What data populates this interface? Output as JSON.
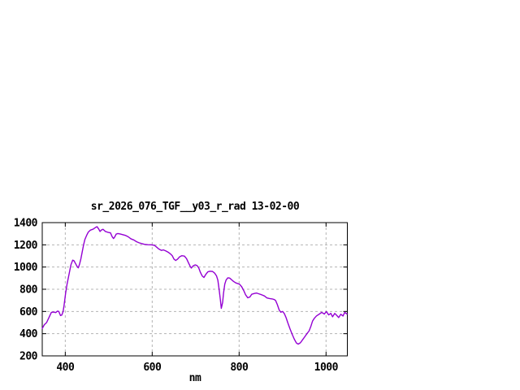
{
  "window": {
    "background": "#ffffff"
  },
  "colors": {
    "curve": "#9400d3",
    "grid": "#b4b4b4",
    "border": "#000000",
    "text": "#000000"
  },
  "chart_data": {
    "type": "line",
    "title": "sr_2026_076_TGF__y03_r_rad 13-02-00",
    "xlabel": "nm",
    "ylabel": "",
    "x_range": [
      347,
      1049
    ],
    "y_range": [
      200,
      1400
    ],
    "x_ticks": [
      400,
      600,
      800,
      1000
    ],
    "y_ticks": [
      200,
      400,
      600,
      800,
      1000,
      1200,
      1400
    ],
    "grid": true,
    "legend_position": "none",
    "series": [
      {
        "name": "sr_2026_076_TGF__y03_r_rad",
        "color": "#9400d3",
        "points": [
          [
            347,
            447
          ],
          [
            352,
            482
          ],
          [
            357,
            500
          ],
          [
            363,
            550
          ],
          [
            368,
            592
          ],
          [
            373,
            595
          ],
          [
            378,
            590
          ],
          [
            382,
            603
          ],
          [
            385,
            600
          ],
          [
            389,
            563
          ],
          [
            392,
            568
          ],
          [
            395,
            600
          ],
          [
            397,
            649
          ],
          [
            399,
            710
          ],
          [
            401,
            771
          ],
          [
            404,
            844
          ],
          [
            409,
            942
          ],
          [
            413,
            1020
          ],
          [
            417,
            1062
          ],
          [
            420,
            1057
          ],
          [
            424,
            1028
          ],
          [
            428,
            1000
          ],
          [
            430,
            993
          ],
          [
            433,
            1028
          ],
          [
            436,
            1076
          ],
          [
            439,
            1137
          ],
          [
            442,
            1198
          ],
          [
            445,
            1247
          ],
          [
            449,
            1284
          ],
          [
            453,
            1315
          ],
          [
            458,
            1333
          ],
          [
            464,
            1341
          ],
          [
            469,
            1355
          ],
          [
            473,
            1364
          ],
          [
            477,
            1342
          ],
          [
            480,
            1320
          ],
          [
            483,
            1333
          ],
          [
            487,
            1340
          ],
          [
            492,
            1321
          ],
          [
            498,
            1313
          ],
          [
            504,
            1308
          ],
          [
            508,
            1272
          ],
          [
            511,
            1257
          ],
          [
            514,
            1272
          ],
          [
            517,
            1296
          ],
          [
            521,
            1302
          ],
          [
            527,
            1297
          ],
          [
            533,
            1291
          ],
          [
            539,
            1284
          ],
          [
            545,
            1272
          ],
          [
            551,
            1254
          ],
          [
            558,
            1243
          ],
          [
            564,
            1228
          ],
          [
            570,
            1218
          ],
          [
            576,
            1211
          ],
          [
            582,
            1205
          ],
          [
            590,
            1201
          ],
          [
            598,
            1200
          ],
          [
            605,
            1196
          ],
          [
            610,
            1180
          ],
          [
            615,
            1163
          ],
          [
            621,
            1150
          ],
          [
            626,
            1154
          ],
          [
            631,
            1146
          ],
          [
            637,
            1133
          ],
          [
            642,
            1118
          ],
          [
            646,
            1103
          ],
          [
            650,
            1072
          ],
          [
            654,
            1059
          ],
          [
            658,
            1070
          ],
          [
            663,
            1092
          ],
          [
            668,
            1102
          ],
          [
            674,
            1099
          ],
          [
            679,
            1076
          ],
          [
            684,
            1034
          ],
          [
            688,
            1002
          ],
          [
            690,
            991
          ],
          [
            694,
            1010
          ],
          [
            699,
            1019
          ],
          [
            703,
            1014
          ],
          [
            707,
            993
          ],
          [
            711,
            951
          ],
          [
            715,
            920
          ],
          [
            719,
            906
          ],
          [
            723,
            932
          ],
          [
            728,
            957
          ],
          [
            733,
            962
          ],
          [
            739,
            960
          ],
          [
            744,
            944
          ],
          [
            748,
            920
          ],
          [
            751,
            883
          ],
          [
            754,
            798
          ],
          [
            757,
            700
          ],
          [
            759,
            628
          ],
          [
            762,
            680
          ],
          [
            764,
            761
          ],
          [
            767,
            846
          ],
          [
            770,
            883
          ],
          [
            774,
            903
          ],
          [
            778,
            901
          ],
          [
            782,
            888
          ],
          [
            787,
            871
          ],
          [
            792,
            858
          ],
          [
            797,
            851
          ],
          [
            801,
            845
          ],
          [
            806,
            822
          ],
          [
            811,
            785
          ],
          [
            815,
            749
          ],
          [
            820,
            723
          ],
          [
            825,
            731
          ],
          [
            829,
            755
          ],
          [
            835,
            762
          ],
          [
            840,
            766
          ],
          [
            846,
            758
          ],
          [
            852,
            750
          ],
          [
            858,
            740
          ],
          [
            864,
            722
          ],
          [
            870,
            716
          ],
          [
            876,
            713
          ],
          [
            881,
            707
          ],
          [
            884,
            698
          ],
          [
            888,
            661
          ],
          [
            892,
            615
          ],
          [
            896,
            593
          ],
          [
            900,
            600
          ],
          [
            904,
            581
          ],
          [
            908,
            545
          ],
          [
            912,
            498
          ],
          [
            917,
            444
          ],
          [
            922,
            395
          ],
          [
            927,
            350
          ],
          [
            932,
            315
          ],
          [
            936,
            306
          ],
          [
            941,
            318
          ],
          [
            946,
            345
          ],
          [
            951,
            372
          ],
          [
            956,
            400
          ],
          [
            961,
            425
          ],
          [
            965,
            465
          ],
          [
            969,
            514
          ],
          [
            973,
            538
          ],
          [
            978,
            560
          ],
          [
            984,
            575
          ],
          [
            990,
            592
          ],
          [
            996,
            577
          ],
          [
            1001,
            599
          ],
          [
            1006,
            569
          ],
          [
            1011,
            583
          ],
          [
            1015,
            552
          ],
          [
            1020,
            582
          ],
          [
            1025,
            563
          ],
          [
            1029,
            545
          ],
          [
            1034,
            575
          ],
          [
            1039,
            559
          ],
          [
            1043,
            592
          ],
          [
            1048,
            577
          ]
        ]
      }
    ]
  }
}
